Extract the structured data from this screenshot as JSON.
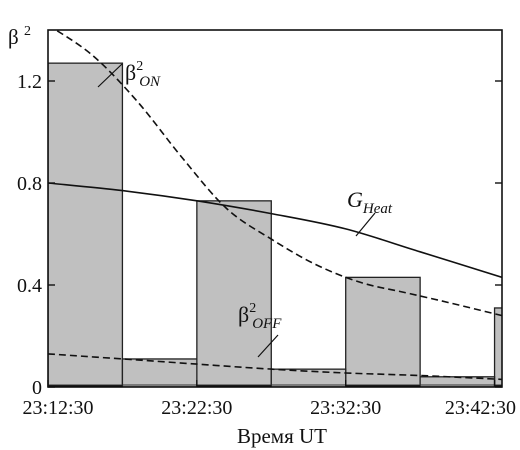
{
  "chart_data": {
    "type": "bar",
    "xlabel": "Время UT",
    "ylabel": "β²",
    "ylim": [
      0,
      1.4
    ],
    "xlim": [
      0,
      30.5
    ],
    "x_unit": "minutes after 23:12:30",
    "xticks": [
      {
        "value": 0,
        "label": "23:12:30"
      },
      {
        "value": 10,
        "label": "23:22:30"
      },
      {
        "value": 20,
        "label": "23:32:30"
      },
      {
        "value": 30,
        "label": "23:42:30"
      }
    ],
    "yticks": [
      {
        "value": 0,
        "label": "0"
      },
      {
        "value": 0.4,
        "label": "0.4"
      },
      {
        "value": 0.8,
        "label": "0.8"
      },
      {
        "value": 1.2,
        "label": "1.2"
      }
    ],
    "bars_on": [
      {
        "start": 0,
        "end": 5,
        "value": 1.27
      },
      {
        "start": 10,
        "end": 15,
        "value": 0.73
      },
      {
        "start": 20,
        "end": 25,
        "value": 0.43
      },
      {
        "start": 30,
        "end": 35,
        "value": 0.31
      }
    ],
    "bars_off": [
      {
        "start": 5,
        "end": 10,
        "value": 0.11
      },
      {
        "start": 15,
        "end": 20,
        "value": 0.07
      },
      {
        "start": 25,
        "end": 30,
        "value": 0.04
      }
    ],
    "heating_periods": [
      {
        "start": 0,
        "end": 5
      },
      {
        "start": 10,
        "end": 15
      },
      {
        "start": 20,
        "end": 25
      },
      {
        "start": 30,
        "end": 35
      }
    ],
    "series": [
      {
        "name": "β²ON",
        "style": "dashed",
        "points": [
          [
            0,
            1.42
          ],
          [
            3,
            1.3
          ],
          [
            6,
            1.12
          ],
          [
            9,
            0.9
          ],
          [
            12,
            0.7
          ],
          [
            15,
            0.58
          ],
          [
            18,
            0.48
          ],
          [
            21,
            0.41
          ],
          [
            24,
            0.37
          ],
          [
            27,
            0.33
          ],
          [
            30.5,
            0.28
          ]
        ]
      },
      {
        "name": "G_Heat",
        "style": "solid",
        "points": [
          [
            0,
            0.8
          ],
          [
            5,
            0.77
          ],
          [
            10,
            0.73
          ],
          [
            15,
            0.68
          ],
          [
            20,
            0.62
          ],
          [
            25,
            0.53
          ],
          [
            30.5,
            0.43
          ]
        ]
      },
      {
        "name": "β²OFF",
        "style": "dashed",
        "points": [
          [
            0,
            0.13
          ],
          [
            5,
            0.11
          ],
          [
            10,
            0.09
          ],
          [
            15,
            0.07
          ],
          [
            20,
            0.055
          ],
          [
            25,
            0.045
          ],
          [
            30.5,
            0.03
          ]
        ]
      }
    ],
    "annotations": [
      {
        "base": "β",
        "sup": "2",
        "sub": "ON"
      },
      {
        "base": "G",
        "sup": "",
        "sub": "Heat"
      },
      {
        "base": "β",
        "sup": "2",
        "sub": "OFF"
      }
    ],
    "colors": {
      "bar_fill": "#c0c0c0",
      "bar_stroke": "#222222",
      "heating_marker": "#000000",
      "line": "#111111"
    },
    "grid": false,
    "legend": "none"
  }
}
